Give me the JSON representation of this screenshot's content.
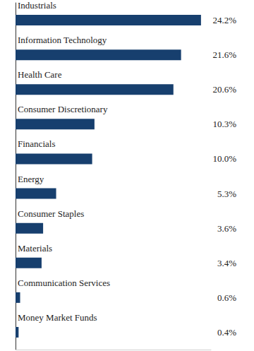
{
  "chart_data": {
    "type": "bar",
    "orientation": "horizontal",
    "categories": [
      "Industrials",
      "Information Technology",
      "Health Care",
      "Consumer Discretionary",
      "Financials",
      "Energy",
      "Consumer Staples",
      "Materials",
      "Communication Services",
      "Money Market Funds"
    ],
    "values": [
      24.2,
      21.6,
      20.6,
      10.3,
      10.0,
      5.3,
      3.6,
      3.4,
      0.6,
      0.4
    ],
    "value_labels": [
      "24.2%",
      "21.6%",
      "20.6%",
      "10.3%",
      "10.0%",
      "5.3%",
      "3.6%",
      "3.4%",
      "0.6%",
      "0.4%"
    ],
    "color": "#173f6e",
    "xlim": [
      0,
      25.5
    ],
    "xticks": [],
    "grid": false,
    "data_labels": true,
    "tick_labels": false
  }
}
